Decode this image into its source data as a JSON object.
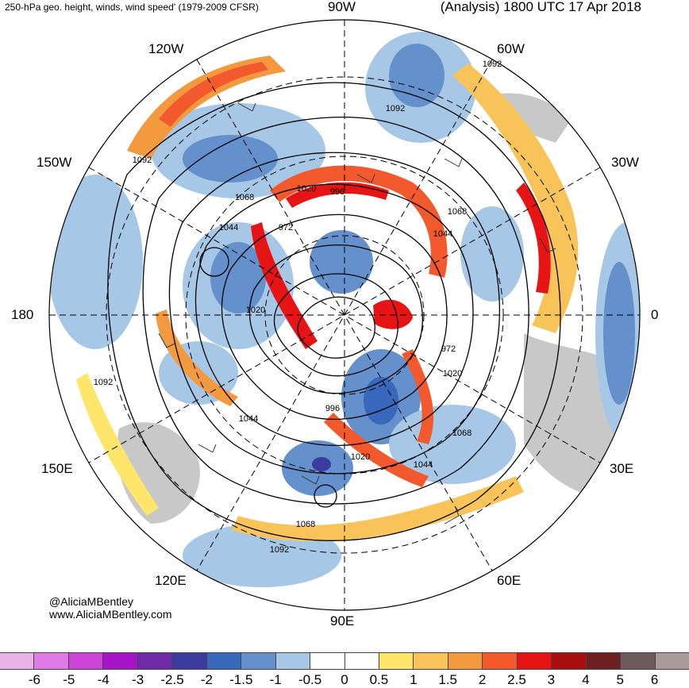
{
  "header": {
    "left_title": "250-hPa geo. height, winds, wind speed' (1979-2009 CFSR)",
    "right_title": "(Analysis) 1800 UTC 17 Apr 2018"
  },
  "longitude_labels": {
    "lon_90w": "90W",
    "lon_60w": "60W",
    "lon_120w": "120W",
    "lon_150w": "150W",
    "lon_30w": "30W",
    "lon_180": "180",
    "lon_0": "0",
    "lon_150e": "150E",
    "lon_30e": "30E",
    "lon_120e": "120E",
    "lon_60e": "60E",
    "lon_90e": "90E"
  },
  "contour_labels": [
    {
      "id": "c1",
      "text": "1092"
    },
    {
      "id": "c2",
      "text": "1092"
    },
    {
      "id": "c3",
      "text": "1092"
    },
    {
      "id": "c4",
      "text": "1092"
    },
    {
      "id": "c5",
      "text": "1092"
    },
    {
      "id": "c6",
      "text": "1068"
    },
    {
      "id": "c7",
      "text": "1068"
    },
    {
      "id": "c8",
      "text": "1068"
    },
    {
      "id": "c9",
      "text": "1068"
    },
    {
      "id": "c10",
      "text": "1044"
    },
    {
      "id": "c11",
      "text": "1044"
    },
    {
      "id": "c12",
      "text": "1044"
    },
    {
      "id": "c13",
      "text": "1044"
    },
    {
      "id": "c14",
      "text": "1020"
    },
    {
      "id": "c15",
      "text": "1020"
    },
    {
      "id": "c16",
      "text": "1020"
    },
    {
      "id": "c17",
      "text": "1020"
    },
    {
      "id": "c18",
      "text": "996"
    },
    {
      "id": "c19",
      "text": "996"
    },
    {
      "id": "c20",
      "text": "972"
    },
    {
      "id": "c21",
      "text": "972"
    }
  ],
  "credits": {
    "twitter": "@AliciaMBentley",
    "website": "www.AliciaMBentley.com"
  },
  "colorbar": {
    "colors": [
      "#e8b4e8",
      "#e07ae6",
      "#cc44d8",
      "#a614c8",
      "#6e2aa8",
      "#3c3c9e",
      "#3868bc",
      "#6490cc",
      "#a6c8e6",
      "#ffffff",
      "#ffffff",
      "#ffe66a",
      "#f8c45a",
      "#f49a3e",
      "#f25a2e",
      "#e61414",
      "#a80e0e",
      "#6e2020",
      "#6e5a5a",
      "#aa9a9a"
    ],
    "ticks": [
      "-6",
      "-5",
      "-4",
      "-3",
      "-2.5",
      "-2",
      "-1.5",
      "-1",
      "-0.5",
      "0",
      "0.5",
      "1",
      "1.5",
      "2",
      "2.5",
      "3",
      "4",
      "5",
      "6"
    ]
  }
}
